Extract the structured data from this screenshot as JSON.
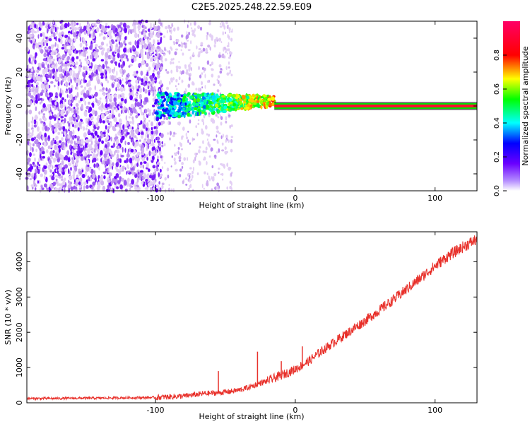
{
  "figure_title": "C2E5.2025.248.22.59.E09",
  "colors": {
    "spectrogram_low": "#e6d2f2",
    "spectrogram_mid": "#6a00ff",
    "line": "#e8302a",
    "axis": "#000000"
  },
  "chart_data": [
    {
      "type": "heatmap",
      "title": "",
      "xlabel": "Height of straight line (km)",
      "ylabel": "Frequency (Hz)",
      "xlim": [
        -192,
        130
      ],
      "ylim": [
        -50,
        50
      ],
      "x_ticks": [
        -100,
        0,
        100
      ],
      "y_ticks": [
        -40,
        -20,
        0,
        20,
        40
      ],
      "colorbar": {
        "label": "Normalized spectral amplitude",
        "range": [
          0,
          1
        ],
        "ticks": [
          "0.0",
          "0.2",
          "0.4",
          "0.6",
          "0.8"
        ],
        "tick_values": [
          0,
          0.2,
          0.4,
          0.6,
          0.8
        ],
        "colormap": "rainbow (white-purple-blue-cyan-green-yellow-red-magenta)"
      },
      "features": {
        "noise_region_x": [
          -192,
          -95
        ],
        "sparse_noise_x": [
          -95,
          -45
        ],
        "signal_emergence_x": [
          -100,
          -15
        ],
        "signal_frequency_hz": 0,
        "strong_carrier_x": [
          -15,
          130
        ],
        "carrier_value": 1.0
      }
    },
    {
      "type": "line",
      "title": "",
      "xlabel": "Height of straight line (km)",
      "ylabel": "SNR (10 * v/v)",
      "xlim": [
        -192,
        130
      ],
      "ylim": [
        0,
        4850
      ],
      "x_ticks": [
        -100,
        0,
        100
      ],
      "y_ticks": [
        0,
        1000,
        2000,
        3000,
        4000
      ],
      "series": [
        {
          "x": [
            -192,
            -150,
            -100,
            -80,
            -65,
            -50,
            -40,
            -30,
            -25,
            -20,
            -15,
            -10,
            -5,
            0,
            10,
            20,
            30,
            40,
            50,
            60,
            70,
            80,
            90,
            100,
            110,
            120,
            130
          ],
          "y": [
            120,
            130,
            150,
            190,
            260,
            300,
            360,
            480,
            560,
            620,
            700,
            780,
            860,
            950,
            1190,
            1500,
            1780,
            2050,
            2330,
            2620,
            2920,
            3230,
            3550,
            3880,
            4180,
            4420,
            4640
          ]
        }
      ],
      "spikes": [
        {
          "x": -55,
          "y": 900
        },
        {
          "x": -27,
          "y": 1450
        },
        {
          "x": -10,
          "y": 1180
        },
        {
          "x": 5,
          "y": 1600
        }
      ]
    }
  ]
}
